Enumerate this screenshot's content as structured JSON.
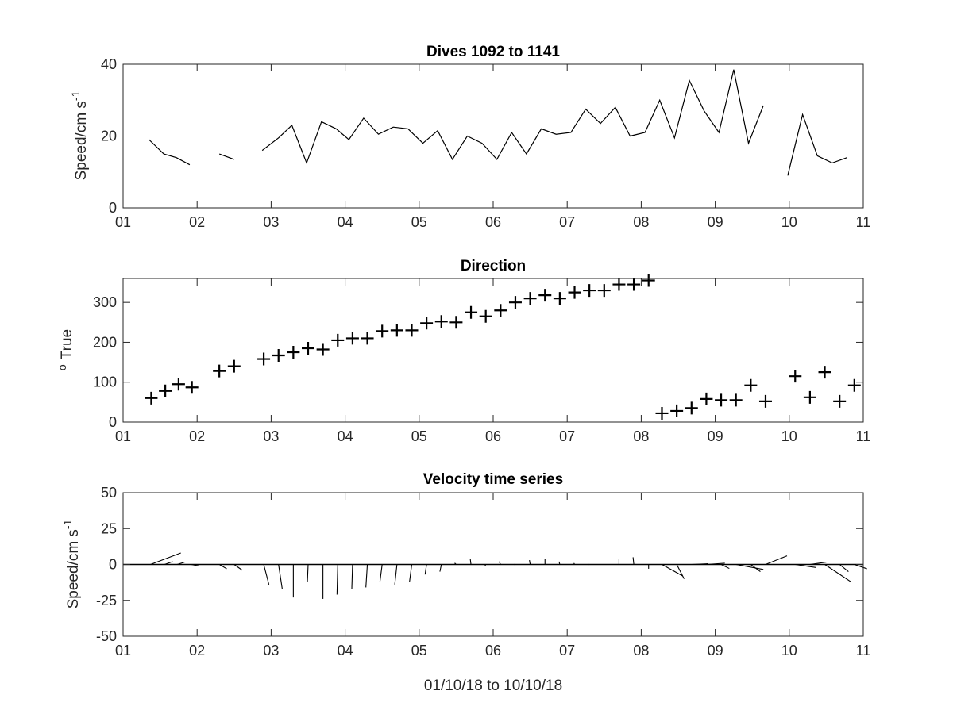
{
  "colors": {
    "background": "#ffffff",
    "axes": "#262626",
    "data": "#000000"
  },
  "chart_data": [
    {
      "type": "line",
      "title": "Dives 1092 to 1141",
      "ylabel": "Speed/cm s",
      "ylabel_superscript": "-1",
      "xlabel": "",
      "xlim": [
        1,
        11
      ],
      "ylim": [
        0,
        40
      ],
      "xticks": [
        1,
        2,
        3,
        4,
        5,
        6,
        7,
        8,
        9,
        10,
        11
      ],
      "xtick_labels": [
        "01",
        "02",
        "03",
        "04",
        "05",
        "06",
        "07",
        "08",
        "09",
        "10",
        "11"
      ],
      "yticks": [
        0,
        20,
        40
      ],
      "ytick_labels": [
        "0",
        "20",
        "40"
      ],
      "series": [
        {
          "segments": [
            [
              [
                1.35,
                19
              ],
              [
                1.55,
                15
              ],
              [
                1.72,
                14
              ],
              [
                1.9,
                12
              ]
            ],
            [
              [
                2.3,
                15
              ],
              [
                2.5,
                13.5
              ]
            ],
            [
              [
                2.88,
                16
              ],
              [
                3.1,
                19.5
              ],
              [
                3.28,
                23
              ],
              [
                3.48,
                12.5
              ],
              [
                3.68,
                24
              ],
              [
                3.88,
                22
              ],
              [
                4.05,
                19
              ],
              [
                4.25,
                25
              ],
              [
                4.45,
                20.5
              ],
              [
                4.65,
                22.5
              ],
              [
                4.85,
                22
              ],
              [
                5.05,
                18
              ],
              [
                5.25,
                21.5
              ],
              [
                5.45,
                13.5
              ],
              [
                5.65,
                20
              ],
              [
                5.85,
                18
              ],
              [
                6.05,
                13.5
              ],
              [
                6.25,
                21
              ],
              [
                6.45,
                15
              ],
              [
                6.65,
                22
              ],
              [
                6.85,
                20.5
              ],
              [
                7.05,
                21
              ],
              [
                7.25,
                27.5
              ],
              [
                7.45,
                23.5
              ],
              [
                7.65,
                28
              ],
              [
                7.85,
                20
              ],
              [
                8.05,
                21
              ],
              [
                8.25,
                30
              ],
              [
                8.45,
                19.5
              ],
              [
                8.65,
                35.5
              ],
              [
                8.85,
                27
              ],
              [
                9.05,
                21
              ],
              [
                9.25,
                38.5
              ],
              [
                9.45,
                18
              ],
              [
                9.65,
                28.5
              ]
            ],
            [
              [
                9.98,
                9
              ],
              [
                10.18,
                26
              ],
              [
                10.38,
                14.5
              ],
              [
                10.58,
                12.5
              ],
              [
                10.78,
                14
              ]
            ]
          ]
        }
      ]
    },
    {
      "type": "scatter",
      "title": "Direction",
      "ylabel": "True",
      "ylabel_prefix": "o",
      "xlabel": "",
      "xlim": [
        1,
        11
      ],
      "ylim": [
        0,
        360
      ],
      "xticks": [
        1,
        2,
        3,
        4,
        5,
        6,
        7,
        8,
        9,
        10,
        11
      ],
      "xtick_labels": [
        "01",
        "02",
        "03",
        "04",
        "05",
        "06",
        "07",
        "08",
        "09",
        "10",
        "11"
      ],
      "yticks": [
        0,
        100,
        200,
        300
      ],
      "ytick_labels": [
        "0",
        "100",
        "200",
        "300"
      ],
      "marker": "+",
      "points": [
        [
          1.38,
          60
        ],
        [
          1.57,
          78
        ],
        [
          1.75,
          95
        ],
        [
          1.93,
          87
        ],
        [
          2.3,
          128
        ],
        [
          2.5,
          140
        ],
        [
          2.9,
          158
        ],
        [
          3.1,
          167
        ],
        [
          3.3,
          175
        ],
        [
          3.5,
          185
        ],
        [
          3.7,
          182
        ],
        [
          3.9,
          205
        ],
        [
          4.1,
          210
        ],
        [
          4.3,
          210
        ],
        [
          4.5,
          228
        ],
        [
          4.7,
          230
        ],
        [
          4.9,
          230
        ],
        [
          5.1,
          248
        ],
        [
          5.3,
          252
        ],
        [
          5.5,
          250
        ],
        [
          5.7,
          275
        ],
        [
          5.9,
          265
        ],
        [
          6.1,
          280
        ],
        [
          6.3,
          300
        ],
        [
          6.5,
          310
        ],
        [
          6.7,
          318
        ],
        [
          6.9,
          310
        ],
        [
          7.1,
          325
        ],
        [
          7.3,
          330
        ],
        [
          7.5,
          330
        ],
        [
          7.7,
          345
        ],
        [
          7.9,
          345
        ],
        [
          8.1,
          355
        ],
        [
          8.28,
          22
        ],
        [
          8.48,
          28
        ],
        [
          8.68,
          35
        ],
        [
          8.88,
          58
        ],
        [
          9.08,
          55
        ],
        [
          9.28,
          55
        ],
        [
          9.48,
          92
        ],
        [
          9.68,
          52
        ],
        [
          10.08,
          115
        ],
        [
          10.28,
          62
        ],
        [
          10.48,
          125
        ],
        [
          10.68,
          52
        ],
        [
          10.88,
          92
        ]
      ]
    },
    {
      "type": "line",
      "title": "Velocity time series",
      "ylabel": "Speed/cm s",
      "ylabel_superscript": "-1",
      "xlabel": "01/10/18 to 10/10/18",
      "xlim": [
        1,
        11
      ],
      "ylim": [
        -50,
        50
      ],
      "xticks": [
        1,
        2,
        3,
        4,
        5,
        6,
        7,
        8,
        9,
        10,
        11
      ],
      "xtick_labels": [
        "01",
        "02",
        "03",
        "04",
        "05",
        "06",
        "07",
        "08",
        "09",
        "10",
        "11"
      ],
      "yticks": [
        -50,
        -25,
        0,
        25,
        50
      ],
      "ytick_labels": [
        "-50",
        "-25",
        "0",
        "25",
        "50"
      ],
      "zero_line": true,
      "sticks": [
        [
          1.37,
          0.41,
          8.0
        ],
        [
          1.56,
          0.11,
          2.0
        ],
        [
          1.73,
          0.1,
          1.6
        ],
        [
          1.92,
          0.1,
          -1.0
        ],
        [
          2.3,
          0.1,
          -3.0
        ],
        [
          2.5,
          0.11,
          -4.0
        ],
        [
          2.9,
          0.07,
          -14.0
        ],
        [
          3.1,
          0.05,
          -17.0
        ],
        [
          3.3,
          0.0,
          -23.0
        ],
        [
          3.5,
          -0.01,
          -12.0
        ],
        [
          3.7,
          0.0,
          -24.0
        ],
        [
          3.9,
          -0.01,
          -21.0
        ],
        [
          4.1,
          -0.01,
          -17.0
        ],
        [
          4.3,
          -0.02,
          -16.0
        ],
        [
          4.5,
          -0.03,
          -12.0
        ],
        [
          4.7,
          -0.03,
          -14.0
        ],
        [
          4.9,
          -0.03,
          -12.0
        ],
        [
          5.1,
          -0.02,
          -7.0
        ],
        [
          5.3,
          -0.02,
          -5.0
        ],
        [
          5.5,
          -0.02,
          1.0
        ],
        [
          5.7,
          -0.01,
          4.0
        ],
        [
          5.9,
          -0.01,
          -1.0
        ],
        [
          6.1,
          -0.02,
          2.0
        ],
        [
          6.3,
          -0.02,
          0.0
        ],
        [
          6.5,
          -0.01,
          3.0
        ],
        [
          6.7,
          0.0,
          4.0
        ],
        [
          6.9,
          -0.01,
          2.0
        ],
        [
          7.1,
          -0.01,
          1.0
        ],
        [
          7.3,
          -0.01,
          0.0
        ],
        [
          7.5,
          0.0,
          0.0
        ],
        [
          7.7,
          0.0,
          4.0
        ],
        [
          7.9,
          -0.01,
          5.0
        ],
        [
          8.1,
          0.0,
          -3.0
        ],
        [
          8.28,
          0.28,
          -8.0
        ],
        [
          8.48,
          0.1,
          -10.0
        ],
        [
          8.68,
          0.22,
          0.5
        ],
        [
          8.88,
          0.25,
          0.9
        ],
        [
          9.08,
          0.11,
          -2.8
        ],
        [
          9.28,
          0.37,
          -3.5
        ],
        [
          9.48,
          0.13,
          -5.0
        ],
        [
          9.68,
          0.29,
          6.0
        ],
        [
          10.08,
          0.28,
          -2.1
        ],
        [
          10.28,
          0.22,
          1.6
        ],
        [
          10.48,
          0.35,
          -12.0
        ],
        [
          10.68,
          0.12,
          -5.0
        ],
        [
          10.88,
          0.17,
          -3.0
        ]
      ]
    }
  ]
}
